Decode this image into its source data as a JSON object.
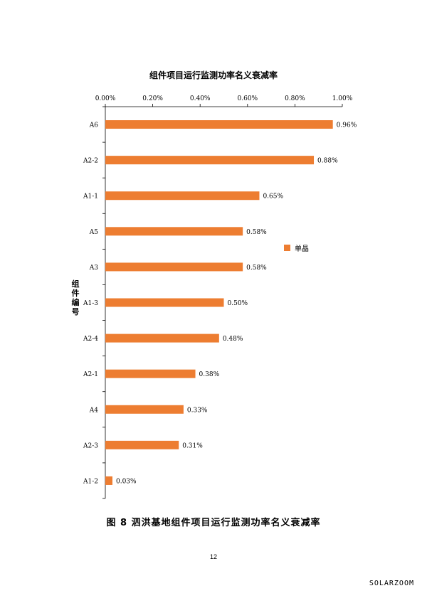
{
  "chart_data": {
    "type": "bar",
    "orientation": "horizontal",
    "title": "组件项目运行监测功率名义衰减率",
    "ylabel": "组件编号",
    "xlabel": "",
    "categories": [
      "A6",
      "A2-2",
      "A1-1",
      "A5",
      "A3",
      "A1-3",
      "A2-4",
      "A2-1",
      "A4",
      "A2-3",
      "A1-2"
    ],
    "series": [
      {
        "name": "单晶",
        "values": [
          0.96,
          0.88,
          0.65,
          0.58,
          0.58,
          0.5,
          0.48,
          0.38,
          0.33,
          0.31,
          0.03
        ],
        "data_labels": [
          "0.96%",
          "0.88%",
          "0.65%",
          "0.58%",
          "0.58%",
          "0.50%",
          "0.48%",
          "0.38%",
          "0.33%",
          "0.31%",
          "0.03%"
        ],
        "color": "#ED7D31"
      }
    ],
    "xlim": [
      0,
      1.0
    ],
    "x_ticks": [
      0,
      0.2,
      0.4,
      0.6,
      0.8,
      1.0
    ],
    "x_tick_labels": [
      "0.00%",
      "0.20%",
      "0.40%",
      "0.60%",
      "0.80%",
      "1.00%"
    ],
    "x_axis_position": "top",
    "grid": false,
    "legend_position": "right"
  },
  "caption": "图 8  泗洪基地组件项目运行监测功率名义衰减率",
  "page_number": "12",
  "watermark": "SOLARZOOM"
}
